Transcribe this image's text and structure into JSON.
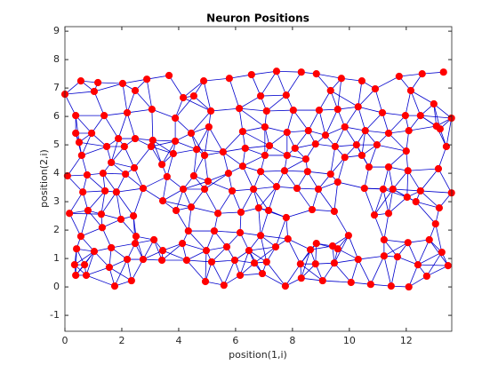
{
  "chart_data": {
    "type": "scatter",
    "title": "Neuron Positions",
    "xlabel": "position(1,i)",
    "ylabel": "position(2,i)",
    "xlim": [
      0,
      13.6
    ],
    "ylim": [
      -1.56,
      9.16
    ],
    "xticks": [
      0,
      2,
      4,
      6,
      8,
      10,
      12
    ],
    "yticks": [
      -1,
      0,
      1,
      2,
      3,
      4,
      5,
      6,
      7,
      8,
      9
    ],
    "color": "#ff0000",
    "edge_color": "#0000cc",
    "x": [
      0,
      0.56,
      1.16,
      1.03,
      2.03,
      2.47,
      2.88,
      3.66,
      4.88,
      4.16,
      4.53,
      5.78,
      6.56,
      7.44,
      8.84,
      8.31,
      9.72,
      10.44,
      11.75,
      12.56,
      13.31,
      10.91,
      12.16,
      12.97,
      0.38,
      1.38,
      2.19,
      3.06,
      3.88,
      5.13,
      6.13,
      6.88,
      7.09,
      7.78,
      8.03,
      8.94,
      9.59,
      10.31,
      11.16,
      11.97,
      12.5,
      13.06,
      13.59,
      9.34,
      0.38,
      0.94,
      1.88,
      2.47,
      3.09,
      3.88,
      4.44,
      5.06,
      6.25,
      7.03,
      7.81,
      8.56,
      9.16,
      9.84,
      10.56,
      11.38,
      12.09,
      13.19,
      0.5,
      1.47,
      2.09,
      3.03,
      3.81,
      4.63,
      5.56,
      6.34,
      7.19,
      8.09,
      8.81,
      9.5,
      10.25,
      10.97,
      12.0,
      13.41,
      0.59,
      1.63,
      2.44,
      3.41,
      4.91,
      6.25,
      7.03,
      7.81,
      8.47,
      9.84,
      10.44,
      10.69,
      11.38,
      12.06,
      13.13,
      0.09,
      0.78,
      1.34,
      2.13,
      3.59,
      4.53,
      5.03,
      5.75,
      6.88,
      7.72,
      8.53,
      9.34,
      9.59,
      0.63,
      1.41,
      1.81,
      2.75,
      3.44,
      4.16,
      4.91,
      5.88,
      6.63,
      7.44,
      8.16,
      8.91,
      10.53,
      11.19,
      11.53,
      12.5,
      13.59,
      12.03,
      0.16,
      0.81,
      1.28,
      1.97,
      2.41,
      3.91,
      4.44,
      5.38,
      6.19,
      6.81,
      7.16,
      7.78,
      8.69,
      9.47,
      10.88,
      11.38,
      12.34,
      13.16,
      13.03,
      0.56,
      1.31,
      2.5,
      3.13,
      4.34,
      5.25,
      6.16,
      6.88,
      7.84,
      8.84,
      9.41,
      9.97,
      11.22,
      12.06,
      12.81,
      0.41,
      1.03,
      1.63,
      2.47,
      3.44,
      4.13,
      4.97,
      5.69,
      6.47,
      7.41,
      8.63,
      9.59,
      0.34,
      0.69,
      1.56,
      2.19,
      2.75,
      3.41,
      4.28,
      5.16,
      5.97,
      6.66,
      7.09,
      8.28,
      8.81,
      9.47,
      10.31,
      11.22,
      11.69,
      12.41,
      13.25,
      13.47,
      0.38,
      0.75,
      1.75,
      2.34,
      4.94,
      5.59,
      6.16,
      6.94,
      7.75,
      8.31,
      9.06,
      10.06,
      10.75,
      11.47,
      12.09,
      12.72
    ],
    "values": [
      6.78,
      7.25,
      7.19,
      6.88,
      7.16,
      6.91,
      7.31,
      7.44,
      7.25,
      6.66,
      6.72,
      7.34,
      7.47,
      7.59,
      7.5,
      7.56,
      7.34,
      7.25,
      7.41,
      7.5,
      7.56,
      6.97,
      6.91,
      6.44,
      6.03,
      6.03,
      6.13,
      6.25,
      5.94,
      6.19,
      6.28,
      6.72,
      6.19,
      6.75,
      6.22,
      6.22,
      6.25,
      6.34,
      6.13,
      6.03,
      6.03,
      5.66,
      5.94,
      6.91,
      5.41,
      5.41,
      5.22,
      5.22,
      5.16,
      5.13,
      5.41,
      5.63,
      5.47,
      5.63,
      5.44,
      5.5,
      5.34,
      5.63,
      5.5,
      5.41,
      5.5,
      5.56,
      5.09,
      4.94,
      4.94,
      4.94,
      4.69,
      4.84,
      4.75,
      4.88,
      4.97,
      4.88,
      5.03,
      4.94,
      5.0,
      5.0,
      4.78,
      4.94,
      4.63,
      4.38,
      4.19,
      4.31,
      4.63,
      4.25,
      4.63,
      4.63,
      4.5,
      4.56,
      4.63,
      4.22,
      4.22,
      4.09,
      4.16,
      3.91,
      3.94,
      4.0,
      3.97,
      3.88,
      3.91,
      3.72,
      4.0,
      4.06,
      4.09,
      4.06,
      3.97,
      3.69,
      3.34,
      3.38,
      3.34,
      3.47,
      3.03,
      3.44,
      3.44,
      3.38,
      3.44,
      3.53,
      3.47,
      3.44,
      3.47,
      3.44,
      3.44,
      3.38,
      3.31,
      3.16,
      2.59,
      2.69,
      2.56,
      2.38,
      2.5,
      2.69,
      2.81,
      2.59,
      2.63,
      2.78,
      2.69,
      2.44,
      2.72,
      2.66,
      2.53,
      2.59,
      3.0,
      2.78,
      2.22,
      1.78,
      2.09,
      1.78,
      1.66,
      1.97,
      1.97,
      1.91,
      1.81,
      1.69,
      1.53,
      1.44,
      1.81,
      1.66,
      1.56,
      1.66,
      1.34,
      1.25,
      1.38,
      1.53,
      1.28,
      1.53,
      1.28,
      1.41,
      1.28,
      1.41,
      1.31,
      1.34,
      0.78,
      0.78,
      0.69,
      0.97,
      0.97,
      0.94,
      0.94,
      0.88,
      0.94,
      0.84,
      0.88,
      0.81,
      0.81,
      0.84,
      0.97,
      1.09,
      1.06,
      0.78,
      1.22,
      0.75,
      0.41,
      0.41,
      0.03,
      0.22,
      0.19,
      0.06,
      0.41,
      0.47,
      0.03,
      0.31,
      0.22,
      0.16,
      0.09,
      0.03,
      0,
      0.38
    ]
  }
}
